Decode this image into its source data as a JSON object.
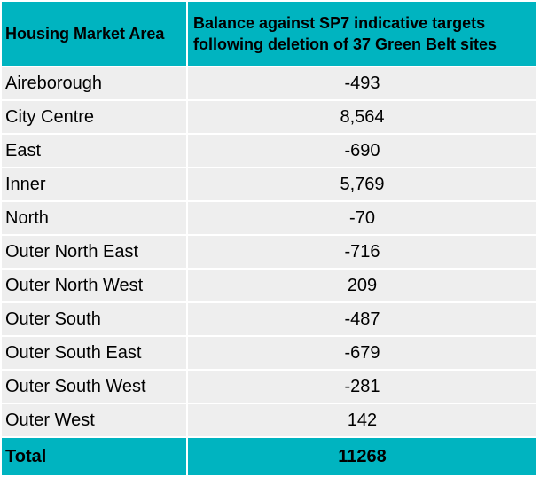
{
  "header": {
    "area_label": "Housing Market Area",
    "balance_line1": "Balance against SP7 indicative targets",
    "balance_line2": "following deletion of 37 Green Belt sites"
  },
  "rows": [
    {
      "area": "Aireborough",
      "value": "-493"
    },
    {
      "area": "City Centre",
      "value": "8,564"
    },
    {
      "area": "East",
      "value": "-690"
    },
    {
      "area": "Inner",
      "value": "5,769"
    },
    {
      "area": "North",
      "value": "-70"
    },
    {
      "area": "Outer North East",
      "value": "-716"
    },
    {
      "area": "Outer North West",
      "value": "209"
    },
    {
      "area": "Outer South",
      "value": "-487"
    },
    {
      "area": "Outer South East",
      "value": "-679"
    },
    {
      "area": "Outer South West",
      "value": "-281"
    },
    {
      "area": "Outer West",
      "value": "142"
    }
  ],
  "total": {
    "label": "Total",
    "value": "11268"
  },
  "colors": {
    "header_bg": "#00b4c0",
    "row_bg": "#eeeeee"
  }
}
